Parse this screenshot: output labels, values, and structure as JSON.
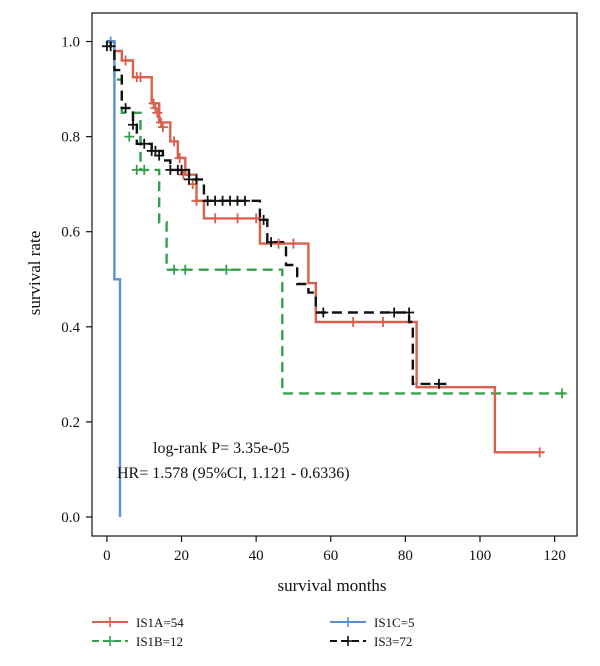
{
  "chart_data": {
    "type": "line",
    "subtype": "kaplan-meier",
    "title": "",
    "xlabel": "survival months",
    "ylabel": "survival rate",
    "xlim": [
      -4,
      126
    ],
    "ylim": [
      -0.04,
      1.06
    ],
    "xticks": [
      0,
      20,
      40,
      60,
      80,
      100,
      120
    ],
    "xtick_labels": [
      "0",
      "20",
      "40",
      "60",
      "80",
      "100",
      "120"
    ],
    "yticks": [
      0.0,
      0.2,
      0.4,
      0.6,
      0.8,
      1.0
    ],
    "ytick_labels": [
      "0.0",
      "0.2",
      "0.4",
      "0.6",
      "0.8",
      "1.0"
    ],
    "grid": false,
    "legend_position": "bottom",
    "annotations": [
      "log-rank P= 3.35e-05",
      "HR= 1.578 (95%CI, 1.121 - 0.6336)"
    ],
    "series": [
      {
        "name": "IS1A=54",
        "color": "#d9604c",
        "style": "solid",
        "steps": [
          [
            0,
            1.0
          ],
          [
            2,
            0.98
          ],
          [
            4,
            0.96
          ],
          [
            7,
            0.925
          ],
          [
            12,
            0.87
          ],
          [
            14,
            0.83
          ],
          [
            17,
            0.79
          ],
          [
            19,
            0.755
          ],
          [
            21,
            0.72
          ],
          [
            24,
            0.665
          ],
          [
            26,
            0.628
          ],
          [
            41,
            0.575
          ],
          [
            54,
            0.492
          ],
          [
            56,
            0.41
          ],
          [
            83,
            0.273
          ],
          [
            104,
            0.136
          ],
          [
            117,
            0.136
          ]
        ],
        "censors": [
          [
            5,
            0.96
          ],
          [
            8,
            0.925
          ],
          [
            9,
            0.925
          ],
          [
            12.5,
            0.87
          ],
          [
            13,
            0.86
          ],
          [
            13.5,
            0.85
          ],
          [
            14.5,
            0.83
          ],
          [
            15,
            0.82
          ],
          [
            18,
            0.79
          ],
          [
            19.5,
            0.755
          ],
          [
            20.5,
            0.72
          ],
          [
            23,
            0.7
          ],
          [
            24,
            0.665
          ],
          [
            29,
            0.628
          ],
          [
            35,
            0.628
          ],
          [
            40,
            0.628
          ],
          [
            46,
            0.575
          ],
          [
            50,
            0.575
          ],
          [
            66,
            0.41
          ],
          [
            74,
            0.41
          ],
          [
            116,
            0.136
          ]
        ]
      },
      {
        "name": "IS1B=12",
        "color": "#35a04a",
        "style": "dashed",
        "steps": [
          [
            0,
            1.0
          ],
          [
            2,
            0.92
          ],
          [
            4,
            0.85
          ],
          [
            9,
            0.73
          ],
          [
            14,
            0.62
          ],
          [
            16,
            0.52
          ],
          [
            47,
            0.26
          ],
          [
            123,
            0.26
          ]
        ],
        "censors": [
          [
            6,
            0.8
          ],
          [
            8,
            0.73
          ],
          [
            10,
            0.73
          ],
          [
            18,
            0.52
          ],
          [
            21,
            0.52
          ],
          [
            32,
            0.52
          ],
          [
            122,
            0.26
          ]
        ]
      },
      {
        "name": "IS1C=5",
        "color": "#5b8fd6",
        "style": "solid",
        "steps": [
          [
            0,
            1.0
          ],
          [
            2,
            1.0
          ],
          [
            2,
            0.5
          ],
          [
            3.5,
            0.5
          ],
          [
            3.5,
            0.0
          ]
        ],
        "censors": [
          [
            1,
            1.0
          ]
        ]
      },
      {
        "name": "IS3=72",
        "color": "#111111",
        "style": "dashed",
        "steps": [
          [
            0,
            1.0
          ],
          [
            1,
            0.985
          ],
          [
            2,
            0.94
          ],
          [
            4,
            0.86
          ],
          [
            7,
            0.825
          ],
          [
            8,
            0.785
          ],
          [
            12,
            0.77
          ],
          [
            15,
            0.75
          ],
          [
            17,
            0.73
          ],
          [
            22,
            0.71
          ],
          [
            26,
            0.665
          ],
          [
            41,
            0.625
          ],
          [
            43,
            0.578
          ],
          [
            48,
            0.53
          ],
          [
            51,
            0.49
          ],
          [
            54,
            0.472
          ],
          [
            56,
            0.43
          ],
          [
            81,
            0.41
          ],
          [
            82,
            0.28
          ],
          [
            91,
            0.28
          ]
        ],
        "censors": [
          [
            0,
            0.99
          ],
          [
            1,
            0.99
          ],
          [
            5,
            0.86
          ],
          [
            7,
            0.825
          ],
          [
            10,
            0.785
          ],
          [
            12,
            0.77
          ],
          [
            13,
            0.77
          ],
          [
            14,
            0.76
          ],
          [
            17,
            0.73
          ],
          [
            19,
            0.73
          ],
          [
            20,
            0.73
          ],
          [
            22,
            0.71
          ],
          [
            24,
            0.71
          ],
          [
            27,
            0.665
          ],
          [
            29,
            0.665
          ],
          [
            31,
            0.665
          ],
          [
            33,
            0.665
          ],
          [
            35,
            0.665
          ],
          [
            37,
            0.665
          ],
          [
            42,
            0.625
          ],
          [
            44,
            0.578
          ],
          [
            58,
            0.43
          ],
          [
            77,
            0.43
          ],
          [
            81,
            0.43
          ],
          [
            89,
            0.28
          ]
        ]
      }
    ]
  }
}
